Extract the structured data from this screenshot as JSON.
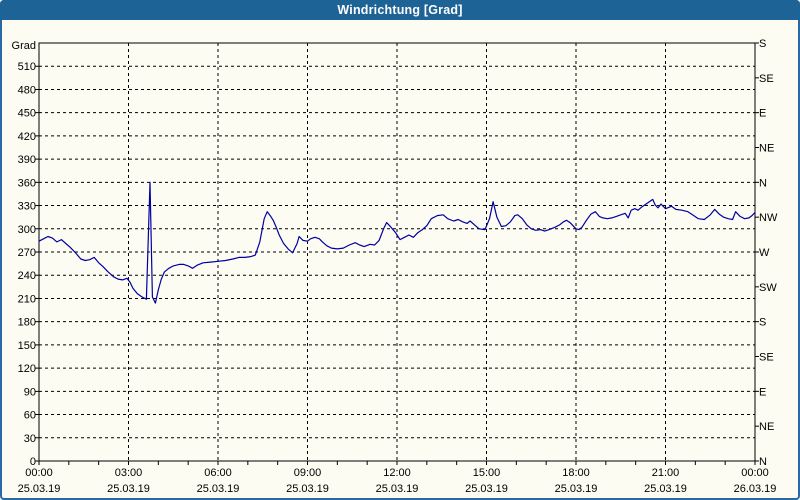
{
  "window": {
    "title": "Windrichtung [Grad]"
  },
  "chart_data": {
    "type": "line",
    "title": "Windrichtung [Grad]",
    "ylabel": "Grad",
    "ylim": [
      0,
      540
    ],
    "xlim_hours": [
      0,
      24
    ],
    "grid": {
      "horizontal_step": 30,
      "vertical_step_hours": 3,
      "style": "dashed"
    },
    "legend": "none",
    "colors": {
      "titlebar": "#1E6396",
      "window_border": "#2A6AA4",
      "background": "#FCFCF3",
      "axis": "#000000",
      "line": "#0000A0"
    },
    "y_axis_left": {
      "unit_label": "Grad",
      "ticks": [
        0,
        30,
        60,
        90,
        120,
        150,
        180,
        210,
        240,
        270,
        300,
        330,
        360,
        390,
        420,
        450,
        480,
        510
      ]
    },
    "y_axis_right": {
      "ticks": [
        {
          "deg": 0,
          "label": "N"
        },
        {
          "deg": 45,
          "label": "NE"
        },
        {
          "deg": 90,
          "label": "E"
        },
        {
          "deg": 135,
          "label": "SE"
        },
        {
          "deg": 180,
          "label": "S"
        },
        {
          "deg": 225,
          "label": "SW"
        },
        {
          "deg": 270,
          "label": "W"
        },
        {
          "deg": 315,
          "label": "NW"
        },
        {
          "deg": 360,
          "label": "N"
        },
        {
          "deg": 405,
          "label": "NE"
        },
        {
          "deg": 450,
          "label": "E"
        },
        {
          "deg": 495,
          "label": "SE"
        },
        {
          "deg": 540,
          "label": "S"
        }
      ]
    },
    "x_axis": {
      "minor_tick_hours": 1,
      "ticks": [
        {
          "hour": 0,
          "time": "00:00",
          "date": "25.03.19"
        },
        {
          "hour": 3,
          "time": "03:00",
          "date": "25.03.19"
        },
        {
          "hour": 6,
          "time": "06:00",
          "date": "25.03.19"
        },
        {
          "hour": 9,
          "time": "09:00",
          "date": "25.03.19"
        },
        {
          "hour": 12,
          "time": "12:00",
          "date": "25.03.19"
        },
        {
          "hour": 15,
          "time": "15:00",
          "date": "25.03.19"
        },
        {
          "hour": 18,
          "time": "18:00",
          "date": "25.03.19"
        },
        {
          "hour": 21,
          "time": "21:00",
          "date": "25.03.19"
        },
        {
          "hour": 24,
          "time": "00:00",
          "date": "26.03.19"
        }
      ]
    },
    "series": [
      {
        "name": "Windrichtung",
        "color": "#0000A0",
        "points": [
          [
            0.0,
            284
          ],
          [
            0.15,
            287
          ],
          [
            0.3,
            290
          ],
          [
            0.45,
            288
          ],
          [
            0.6,
            283
          ],
          [
            0.75,
            286
          ],
          [
            0.9,
            281
          ],
          [
            1.05,
            276
          ],
          [
            1.2,
            270
          ],
          [
            1.4,
            261
          ],
          [
            1.55,
            259
          ],
          [
            1.7,
            260
          ],
          [
            1.85,
            263
          ],
          [
            2.0,
            256
          ],
          [
            2.15,
            251
          ],
          [
            2.3,
            245
          ],
          [
            2.5,
            238
          ],
          [
            2.65,
            235
          ],
          [
            2.8,
            234
          ],
          [
            2.95,
            236
          ],
          [
            3.05,
            231
          ],
          [
            3.15,
            223
          ],
          [
            3.3,
            216
          ],
          [
            3.45,
            212
          ],
          [
            3.6,
            209
          ],
          [
            3.72,
            360
          ],
          [
            3.8,
            212
          ],
          [
            3.9,
            204
          ],
          [
            4.0,
            221
          ],
          [
            4.1,
            235
          ],
          [
            4.2,
            244
          ],
          [
            4.35,
            249
          ],
          [
            4.5,
            252
          ],
          [
            4.7,
            254
          ],
          [
            4.85,
            254
          ],
          [
            5.0,
            252
          ],
          [
            5.15,
            249
          ],
          [
            5.3,
            253
          ],
          [
            5.5,
            256
          ],
          [
            5.75,
            257
          ],
          [
            6.0,
            258
          ],
          [
            6.25,
            259
          ],
          [
            6.5,
            261
          ],
          [
            6.7,
            263
          ],
          [
            6.9,
            263
          ],
          [
            7.1,
            264
          ],
          [
            7.25,
            266
          ],
          [
            7.4,
            283
          ],
          [
            7.55,
            313
          ],
          [
            7.65,
            322
          ],
          [
            7.75,
            317
          ],
          [
            7.85,
            311
          ],
          [
            7.95,
            302
          ],
          [
            8.05,
            292
          ],
          [
            8.2,
            281
          ],
          [
            8.35,
            274
          ],
          [
            8.5,
            269
          ],
          [
            8.65,
            281
          ],
          [
            8.72,
            290
          ],
          [
            8.85,
            285
          ],
          [
            9.0,
            284
          ],
          [
            9.1,
            287
          ],
          [
            9.25,
            289
          ],
          [
            9.4,
            287
          ],
          [
            9.5,
            283
          ],
          [
            9.65,
            278
          ],
          [
            9.8,
            275
          ],
          [
            10.0,
            274
          ],
          [
            10.2,
            275
          ],
          [
            10.4,
            279
          ],
          [
            10.6,
            282
          ],
          [
            10.75,
            279
          ],
          [
            10.9,
            277
          ],
          [
            11.1,
            280
          ],
          [
            11.25,
            279
          ],
          [
            11.4,
            285
          ],
          [
            11.55,
            300
          ],
          [
            11.65,
            308
          ],
          [
            11.8,
            302
          ],
          [
            11.95,
            295
          ],
          [
            12.1,
            286
          ],
          [
            12.25,
            289
          ],
          [
            12.4,
            292
          ],
          [
            12.55,
            289
          ],
          [
            12.7,
            295
          ],
          [
            12.85,
            299
          ],
          [
            13.0,
            304
          ],
          [
            13.15,
            313
          ],
          [
            13.35,
            317
          ],
          [
            13.55,
            318
          ],
          [
            13.7,
            313
          ],
          [
            13.9,
            310
          ],
          [
            14.05,
            312
          ],
          [
            14.2,
            309
          ],
          [
            14.35,
            307
          ],
          [
            14.45,
            310
          ],
          [
            14.6,
            305
          ],
          [
            14.75,
            300
          ],
          [
            14.95,
            299
          ],
          [
            15.1,
            313
          ],
          [
            15.22,
            335
          ],
          [
            15.35,
            315
          ],
          [
            15.5,
            303
          ],
          [
            15.65,
            304
          ],
          [
            15.8,
            309
          ],
          [
            15.95,
            317
          ],
          [
            16.05,
            318
          ],
          [
            16.2,
            313
          ],
          [
            16.35,
            305
          ],
          [
            16.5,
            300
          ],
          [
            16.65,
            298
          ],
          [
            16.8,
            299
          ],
          [
            16.95,
            297
          ],
          [
            17.1,
            299
          ],
          [
            17.3,
            302
          ],
          [
            17.45,
            305
          ],
          [
            17.58,
            309
          ],
          [
            17.68,
            311
          ],
          [
            17.8,
            308
          ],
          [
            17.9,
            304
          ],
          [
            18.0,
            300
          ],
          [
            18.1,
            299
          ],
          [
            18.2,
            302
          ],
          [
            18.35,
            311
          ],
          [
            18.5,
            319
          ],
          [
            18.65,
            322
          ],
          [
            18.78,
            316
          ],
          [
            18.9,
            314
          ],
          [
            19.05,
            313
          ],
          [
            19.2,
            314
          ],
          [
            19.35,
            316
          ],
          [
            19.5,
            318
          ],
          [
            19.65,
            320
          ],
          [
            19.75,
            314
          ],
          [
            19.85,
            324
          ],
          [
            19.97,
            326
          ],
          [
            20.08,
            324
          ],
          [
            20.2,
            328
          ],
          [
            20.35,
            332
          ],
          [
            20.5,
            336
          ],
          [
            20.57,
            338
          ],
          [
            20.65,
            331
          ],
          [
            20.75,
            327
          ],
          [
            20.85,
            332
          ],
          [
            21.0,
            326
          ],
          [
            21.2,
            329
          ],
          [
            21.35,
            325
          ],
          [
            21.55,
            324
          ],
          [
            21.75,
            322
          ],
          [
            21.95,
            317
          ],
          [
            22.1,
            313
          ],
          [
            22.3,
            312
          ],
          [
            22.5,
            318
          ],
          [
            22.65,
            325
          ],
          [
            22.8,
            319
          ],
          [
            22.95,
            315
          ],
          [
            23.1,
            313
          ],
          [
            23.25,
            312
          ],
          [
            23.35,
            322
          ],
          [
            23.5,
            316
          ],
          [
            23.65,
            313
          ],
          [
            23.8,
            314
          ],
          [
            23.9,
            317
          ],
          [
            24.0,
            321
          ]
        ]
      }
    ]
  }
}
